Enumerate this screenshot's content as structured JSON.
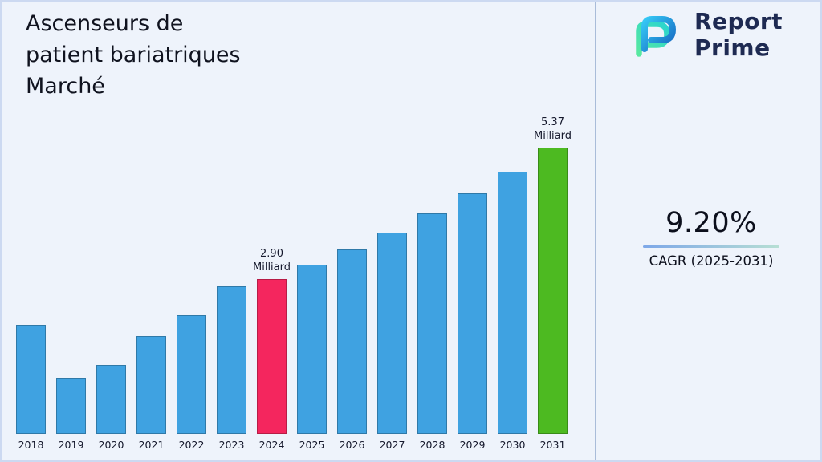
{
  "title": "Ascenseurs de\npatient bariatriques\nMarché",
  "logo": {
    "name": "Report Prime",
    "line1": "Report",
    "line2": "Prime",
    "text_color": "#1e2a52",
    "icon_blue": "#1565c0",
    "icon_light_blue": "#35c8f5",
    "icon_green": "#57e8a0"
  },
  "cagr": {
    "value": "9.20%",
    "label": "CAGR (2025-2031)"
  },
  "chart_data": {
    "type": "bar",
    "title": "Ascenseurs de patient bariatriques Marché",
    "unit": "Milliard",
    "categories": [
      "2018",
      "2019",
      "2020",
      "2021",
      "2022",
      "2023",
      "2024",
      "2025",
      "2026",
      "2027",
      "2028",
      "2029",
      "2030",
      "2031"
    ],
    "values": [
      2.05,
      1.06,
      1.3,
      1.84,
      2.23,
      2.77,
      2.9,
      3.17,
      3.46,
      3.78,
      4.13,
      4.51,
      4.92,
      5.37
    ],
    "labeled_points": [
      {
        "category": "2024",
        "label": "2.90\nMilliard"
      },
      {
        "category": "2031",
        "label": "5.37\nMilliard"
      }
    ],
    "colors": {
      "default": "#3FA2E1",
      "2024": "#F4265E",
      "2031": "#4DBA21"
    },
    "ylim": [
      0,
      5.6
    ],
    "grid": false,
    "legend": false,
    "xlabel": "",
    "ylabel": ""
  }
}
